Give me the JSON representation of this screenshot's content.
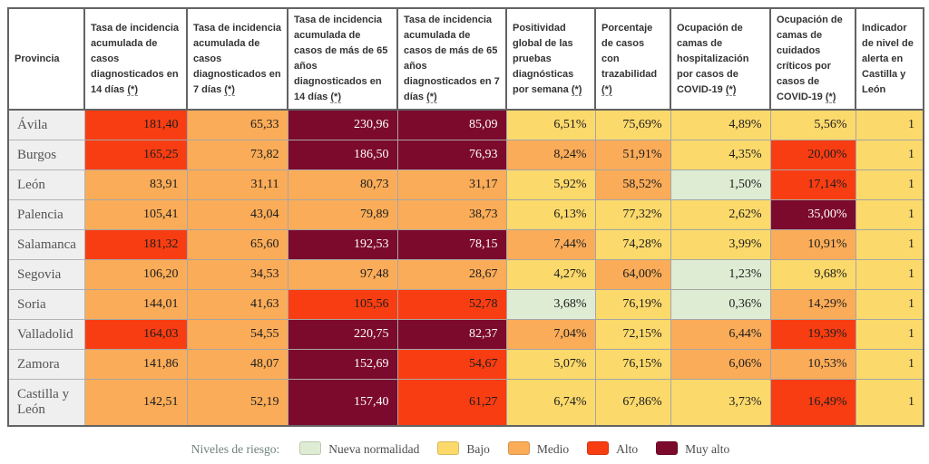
{
  "risk_colors": {
    "nueva_normalidad": "#deecd3",
    "bajo": "#fcd96b",
    "medio": "#fbac58",
    "alto": "#f93d12",
    "muy_alto": "#7c0a2d"
  },
  "chart_data": {
    "type": "table",
    "footnote_symbol": "(*)",
    "columns": [
      {
        "label": "Provincia",
        "footnote": false
      },
      {
        "label": "Tasa de incidencia acumulada de casos diagnosticados en 14 días",
        "footnote": true
      },
      {
        "label": "Tasa de incidencia acumulada de casos diagnosticados en 7 días",
        "footnote": true
      },
      {
        "label": "Tasa de incidencia acumulada de casos de más de 65 años diagnosticados en 14 días",
        "footnote": true
      },
      {
        "label": "Tasa de incidencia acumulada de casos de más de 65 años diagnosticados en 7 días",
        "footnote": true
      },
      {
        "label": "Positividad global de las pruebas diagnósticas por semana",
        "footnote": true
      },
      {
        "label": "Porcentaje de casos con trazabilidad",
        "footnote": true
      },
      {
        "label": "Ocupación de camas de hospitalización por casos de COVID-19",
        "footnote": true
      },
      {
        "label": "Ocupación de camas de cuidados críticos por casos de COVID-19",
        "footnote": true
      },
      {
        "label": "Indicador de nivel de alerta en Castilla y León",
        "footnote": false
      }
    ],
    "rows": [
      {
        "province": "Ávila",
        "cells": [
          {
            "value": "181,40",
            "level": "alto"
          },
          {
            "value": "65,33",
            "level": "medio"
          },
          {
            "value": "230,96",
            "level": "muy_alto"
          },
          {
            "value": "85,09",
            "level": "muy_alto"
          },
          {
            "value": "6,51%",
            "level": "bajo"
          },
          {
            "value": "75,69%",
            "level": "bajo"
          },
          {
            "value": "4,89%",
            "level": "bajo"
          },
          {
            "value": "5,56%",
            "level": "bajo"
          },
          {
            "value": "1",
            "level": "bajo"
          }
        ]
      },
      {
        "province": "Burgos",
        "cells": [
          {
            "value": "165,25",
            "level": "alto"
          },
          {
            "value": "73,82",
            "level": "medio"
          },
          {
            "value": "186,50",
            "level": "muy_alto"
          },
          {
            "value": "76,93",
            "level": "muy_alto"
          },
          {
            "value": "8,24%",
            "level": "medio"
          },
          {
            "value": "51,91%",
            "level": "medio"
          },
          {
            "value": "4,35%",
            "level": "bajo"
          },
          {
            "value": "20,00%",
            "level": "alto"
          },
          {
            "value": "1",
            "level": "bajo"
          }
        ]
      },
      {
        "province": "León",
        "cells": [
          {
            "value": "83,91",
            "level": "medio"
          },
          {
            "value": "31,11",
            "level": "medio"
          },
          {
            "value": "80,73",
            "level": "medio"
          },
          {
            "value": "31,17",
            "level": "medio"
          },
          {
            "value": "5,92%",
            "level": "bajo"
          },
          {
            "value": "58,52%",
            "level": "medio"
          },
          {
            "value": "1,50%",
            "level": "nueva_normalidad"
          },
          {
            "value": "17,14%",
            "level": "alto"
          },
          {
            "value": "1",
            "level": "bajo"
          }
        ]
      },
      {
        "province": "Palencia",
        "cells": [
          {
            "value": "105,41",
            "level": "medio"
          },
          {
            "value": "43,04",
            "level": "medio"
          },
          {
            "value": "79,89",
            "level": "medio"
          },
          {
            "value": "38,73",
            "level": "medio"
          },
          {
            "value": "6,13%",
            "level": "bajo"
          },
          {
            "value": "77,32%",
            "level": "bajo"
          },
          {
            "value": "2,62%",
            "level": "bajo"
          },
          {
            "value": "35,00%",
            "level": "muy_alto"
          },
          {
            "value": "1",
            "level": "bajo"
          }
        ]
      },
      {
        "province": "Salamanca",
        "cells": [
          {
            "value": "181,32",
            "level": "alto"
          },
          {
            "value": "65,60",
            "level": "medio"
          },
          {
            "value": "192,53",
            "level": "muy_alto"
          },
          {
            "value": "78,15",
            "level": "muy_alto"
          },
          {
            "value": "7,44%",
            "level": "medio"
          },
          {
            "value": "74,28%",
            "level": "bajo"
          },
          {
            "value": "3,99%",
            "level": "bajo"
          },
          {
            "value": "10,91%",
            "level": "medio"
          },
          {
            "value": "1",
            "level": "bajo"
          }
        ]
      },
      {
        "province": "Segovia",
        "cells": [
          {
            "value": "106,20",
            "level": "medio"
          },
          {
            "value": "34,53",
            "level": "medio"
          },
          {
            "value": "97,48",
            "level": "medio"
          },
          {
            "value": "28,67",
            "level": "medio"
          },
          {
            "value": "4,27%",
            "level": "bajo"
          },
          {
            "value": "64,00%",
            "level": "medio"
          },
          {
            "value": "1,23%",
            "level": "nueva_normalidad"
          },
          {
            "value": "9,68%",
            "level": "bajo"
          },
          {
            "value": "1",
            "level": "bajo"
          }
        ]
      },
      {
        "province": "Soria",
        "cells": [
          {
            "value": "144,01",
            "level": "medio"
          },
          {
            "value": "41,63",
            "level": "medio"
          },
          {
            "value": "105,56",
            "level": "alto"
          },
          {
            "value": "52,78",
            "level": "alto"
          },
          {
            "value": "3,68%",
            "level": "nueva_normalidad"
          },
          {
            "value": "76,19%",
            "level": "bajo"
          },
          {
            "value": "0,36%",
            "level": "nueva_normalidad"
          },
          {
            "value": "14,29%",
            "level": "medio"
          },
          {
            "value": "1",
            "level": "bajo"
          }
        ]
      },
      {
        "province": "Valladolid",
        "cells": [
          {
            "value": "164,03",
            "level": "alto"
          },
          {
            "value": "54,55",
            "level": "medio"
          },
          {
            "value": "220,75",
            "level": "muy_alto"
          },
          {
            "value": "82,37",
            "level": "muy_alto"
          },
          {
            "value": "7,04%",
            "level": "medio"
          },
          {
            "value": "72,15%",
            "level": "bajo"
          },
          {
            "value": "6,44%",
            "level": "medio"
          },
          {
            "value": "19,39%",
            "level": "alto"
          },
          {
            "value": "1",
            "level": "bajo"
          }
        ]
      },
      {
        "province": "Zamora",
        "cells": [
          {
            "value": "141,86",
            "level": "medio"
          },
          {
            "value": "48,07",
            "level": "medio"
          },
          {
            "value": "152,69",
            "level": "muy_alto"
          },
          {
            "value": "54,67",
            "level": "alto"
          },
          {
            "value": "5,07%",
            "level": "bajo"
          },
          {
            "value": "76,15%",
            "level": "bajo"
          },
          {
            "value": "6,06%",
            "level": "medio"
          },
          {
            "value": "10,53%",
            "level": "medio"
          },
          {
            "value": "1",
            "level": "bajo"
          }
        ]
      },
      {
        "province": "Castilla y León",
        "cells": [
          {
            "value": "142,51",
            "level": "medio"
          },
          {
            "value": "52,19",
            "level": "medio"
          },
          {
            "value": "157,40",
            "level": "muy_alto"
          },
          {
            "value": "61,27",
            "level": "alto"
          },
          {
            "value": "6,74%",
            "level": "bajo"
          },
          {
            "value": "67,86%",
            "level": "bajo"
          },
          {
            "value": "3,73%",
            "level": "bajo"
          },
          {
            "value": "16,49%",
            "level": "alto"
          },
          {
            "value": "1",
            "level": "bajo"
          }
        ]
      }
    ]
  },
  "legend": {
    "label": "Niveles de riesgo:",
    "items": [
      {
        "label": "Nueva normalidad",
        "level": "nueva_normalidad",
        "color": "#deecd3"
      },
      {
        "label": "Bajo",
        "level": "bajo",
        "color": "#fcd96b"
      },
      {
        "label": "Medio",
        "level": "medio",
        "color": "#fbac58"
      },
      {
        "label": "Alto",
        "level": "alto",
        "color": "#f93d12"
      },
      {
        "label": "Muy alto",
        "level": "muy_alto",
        "color": "#7c0a2d"
      }
    ]
  }
}
